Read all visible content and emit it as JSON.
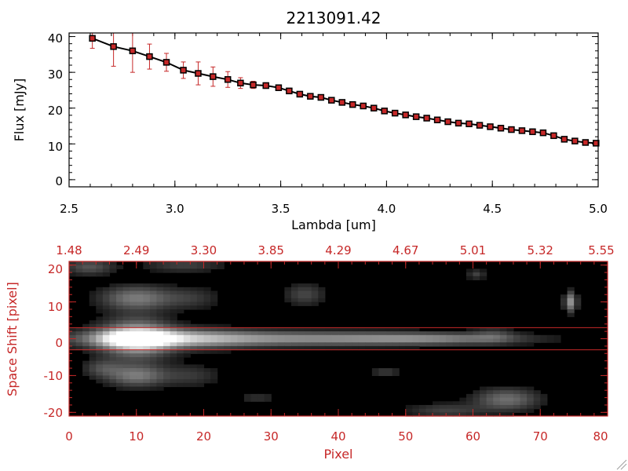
{
  "chart_data": [
    {
      "type": "line",
      "title": "2213091.42",
      "xlabel": "Lambda [um]",
      "ylabel": "Flux [mJy]",
      "xlim": [
        2.5,
        5.0
      ],
      "ylim": [
        -2,
        41
      ],
      "x_ticks": [
        "2.5",
        "3.0",
        "3.5",
        "4.0",
        "4.5",
        "5.0"
      ],
      "y_ticks": [
        "0",
        "10",
        "20",
        "30",
        "40"
      ],
      "grid": false,
      "colors": {
        "line": "#000000",
        "marker": "#c62828",
        "error_bar": "#c62828"
      },
      "series": [
        {
          "x": [
            2.61,
            2.71,
            2.8,
            2.88,
            2.96,
            3.04,
            3.11,
            3.18,
            3.25,
            3.31,
            3.37,
            3.43,
            3.49,
            3.54,
            3.59,
            3.64,
            3.69,
            3.74,
            3.79,
            3.84,
            3.89,
            3.94,
            3.99,
            4.04,
            4.09,
            4.14,
            4.19,
            4.24,
            4.29,
            4.34,
            4.39,
            4.44,
            4.49,
            4.54,
            4.59,
            4.64,
            4.69,
            4.74,
            4.79,
            4.84,
            4.89,
            4.94,
            4.99
          ],
          "y": [
            39.5,
            37.2,
            36.0,
            34.4,
            32.8,
            30.6,
            29.7,
            28.8,
            28.0,
            27.0,
            26.5,
            26.3,
            25.7,
            24.8,
            23.9,
            23.3,
            23.0,
            22.2,
            21.6,
            21.0,
            20.6,
            20.0,
            19.2,
            18.6,
            18.1,
            17.6,
            17.2,
            16.7,
            16.2,
            15.8,
            15.6,
            15.2,
            14.8,
            14.4,
            14.0,
            13.7,
            13.4,
            13.1,
            12.3,
            11.3,
            10.8,
            10.4,
            10.2
          ],
          "yerr": [
            2.8,
            5.5,
            6.0,
            3.5,
            2.5,
            2.3,
            3.2,
            2.7,
            2.2,
            1.5,
            1.0,
            0.8,
            0.7,
            0.6,
            0.5,
            0.5,
            0.5,
            0.5,
            0.5,
            0.5,
            0.5,
            0.5,
            0.5,
            0.5,
            0.5,
            0.5,
            0.5,
            0.5,
            0.5,
            0.5,
            0.5,
            0.5,
            0.5,
            0.5,
            0.5,
            0.5,
            0.5,
            0.5,
            0.5,
            0.5,
            0.5,
            0.5,
            0.5
          ]
        }
      ]
    },
    {
      "type": "heatmap",
      "xlabel": "Pixel",
      "ylabel": "Space Shift [pixel]",
      "xlim": [
        0,
        80
      ],
      "ylim": [
        -21,
        21
      ],
      "x_ticks": [
        "0",
        "10",
        "20",
        "30",
        "40",
        "50",
        "60",
        "70",
        "80"
      ],
      "y_ticks": [
        "-20",
        "-10",
        "0",
        "10",
        "20"
      ],
      "top_axis_ticks": [
        "1.48",
        "2.49",
        "3.30",
        "3.85",
        "4.29",
        "4.67",
        "5.01",
        "5.32",
        "5.55"
      ],
      "extraction_lines_y": [
        3,
        -3
      ],
      "colormap": "grayscale",
      "colors": {
        "axis": "#c62828",
        "background": "#000000"
      },
      "blobs": [
        {
          "x": 10,
          "y": 0,
          "sx": 3.2,
          "sy": 1.6,
          "amp": 1.0
        },
        {
          "x": 14,
          "y": 0,
          "sx": 8.0,
          "sy": 1.8,
          "amp": 0.55
        },
        {
          "x": 33,
          "y": 0,
          "sx": 17.0,
          "sy": 1.3,
          "amp": 0.45
        },
        {
          "x": 54,
          "y": 0,
          "sx": 9.0,
          "sy": 1.0,
          "amp": 0.28
        },
        {
          "x": 10,
          "y": 3,
          "sx": 3.5,
          "sy": 2.5,
          "amp": 0.3
        },
        {
          "x": 10,
          "y": -3,
          "sx": 3.5,
          "sy": 2.5,
          "amp": 0.3
        },
        {
          "x": 10,
          "y": 11,
          "sx": 3.5,
          "sy": 2.2,
          "amp": 0.4
        },
        {
          "x": 10,
          "y": -10,
          "sx": 3.0,
          "sy": 2.0,
          "amp": 0.4
        },
        {
          "x": 5,
          "y": -8,
          "sx": 2.0,
          "sy": 1.6,
          "amp": 0.2
        },
        {
          "x": 18,
          "y": 11,
          "sx": 3.0,
          "sy": 2.0,
          "amp": 0.15
        },
        {
          "x": 18,
          "y": -10,
          "sx": 3.0,
          "sy": 2.0,
          "amp": 0.15
        },
        {
          "x": 3,
          "y": 19.5,
          "sx": 2.5,
          "sy": 1.5,
          "amp": 0.25
        },
        {
          "x": 17,
          "y": 20,
          "sx": 4.0,
          "sy": 1.3,
          "amp": 0.18
        },
        {
          "x": 35,
          "y": 12,
          "sx": 2.0,
          "sy": 2.0,
          "amp": 0.2
        },
        {
          "x": 74.5,
          "y": 10,
          "sx": 0.6,
          "sy": 1.8,
          "amp": 0.5
        },
        {
          "x": 60.5,
          "y": 17.5,
          "sx": 0.9,
          "sy": 0.9,
          "amp": 0.18
        },
        {
          "x": 65,
          "y": -16.5,
          "sx": 3.2,
          "sy": 2.0,
          "amp": 0.35
        },
        {
          "x": 56,
          "y": -19.5,
          "sx": 4.0,
          "sy": 1.3,
          "amp": 0.18
        },
        {
          "x": 47,
          "y": -9,
          "sx": 1.5,
          "sy": 1.0,
          "amp": 0.15
        },
        {
          "x": 28,
          "y": -16,
          "sx": 2.0,
          "sy": 1.0,
          "amp": 0.12
        },
        {
          "x": 63,
          "y": 1,
          "sx": 2.0,
          "sy": 1.5,
          "amp": 0.15
        }
      ]
    }
  ]
}
